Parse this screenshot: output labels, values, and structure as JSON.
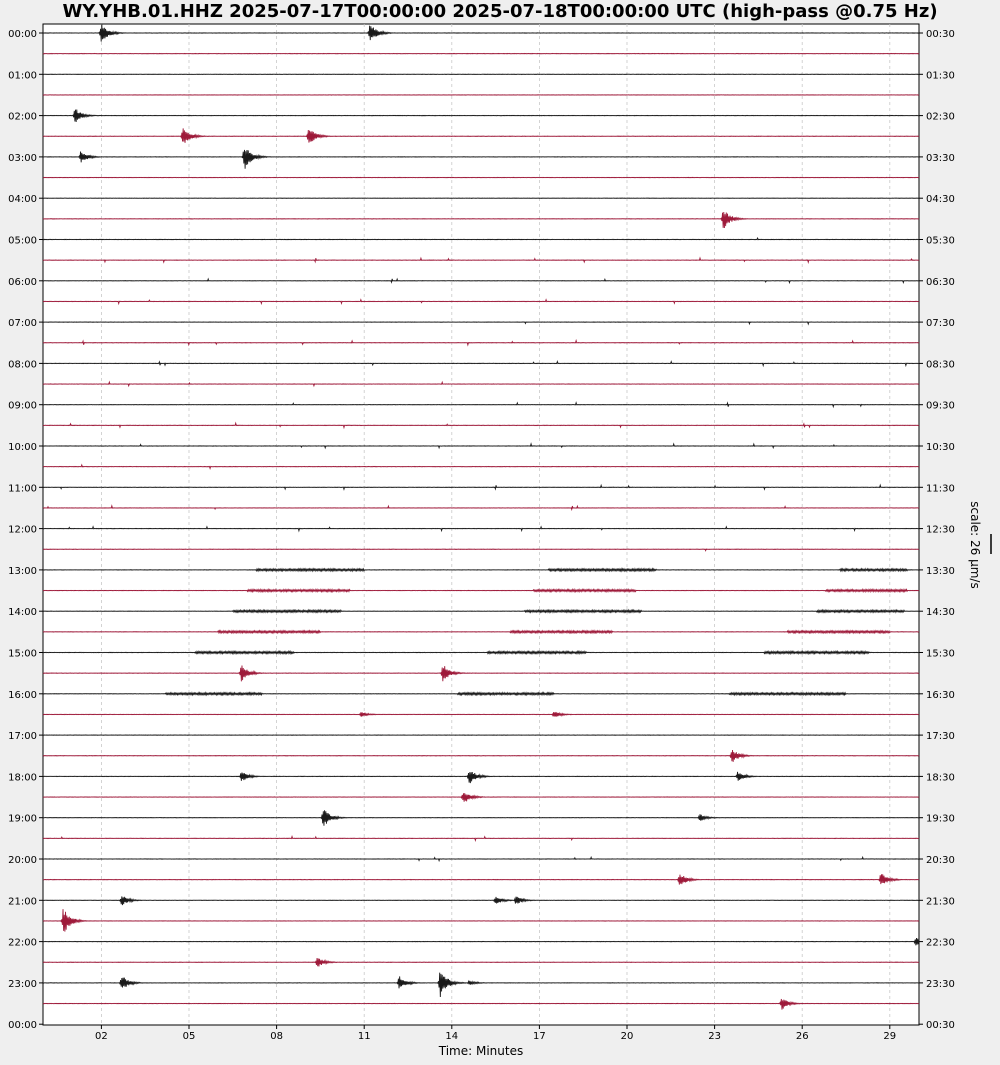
{
  "chart_data": {
    "type": "line",
    "title": "WY.YHB.01.HHZ 2025-07-17T00:00:00 2025-07-18T00:00:00 UTC (high-pass @0.75 Hz)",
    "xlabel": "Time: Minutes",
    "xlim": [
      0,
      30
    ],
    "x_ticks": [
      "02",
      "05",
      "08",
      "11",
      "14",
      "17",
      "20",
      "23",
      "26",
      "29"
    ],
    "x_tick_values": [
      2,
      5,
      8,
      11,
      14,
      17,
      20,
      23,
      26,
      29
    ],
    "left_labels": [
      "00:00",
      "01:00",
      "02:00",
      "03:00",
      "04:00",
      "05:00",
      "06:00",
      "07:00",
      "08:00",
      "09:00",
      "10:00",
      "11:00",
      "12:00",
      "13:00",
      "14:00",
      "15:00",
      "16:00",
      "17:00",
      "18:00",
      "19:00",
      "20:00",
      "21:00",
      "22:00",
      "23:00",
      "00:00"
    ],
    "right_labels": [
      "00:30",
      "01:30",
      "02:30",
      "03:30",
      "04:30",
      "05:30",
      "06:30",
      "07:30",
      "08:30",
      "09:30",
      "10:30",
      "11:30",
      "12:30",
      "13:30",
      "14:30",
      "15:30",
      "16:30",
      "17:30",
      "18:30",
      "19:30",
      "20:30",
      "21:30",
      "22:30",
      "23:30",
      "00:30"
    ],
    "scale_label": "scale: 26 μm/s",
    "grid": true,
    "colors": {
      "even_trace": "#1a1a1a",
      "odd_trace": "#9e1a3a",
      "grid": "#c8c8c8",
      "background": "#ffffff",
      "page": "#efefef"
    },
    "n_traces": 48,
    "events": [
      {
        "trace": 0,
        "minute": 2.0,
        "amp": 0.55
      },
      {
        "trace": 0,
        "minute": 11.2,
        "amp": 0.55
      },
      {
        "trace": 4,
        "minute": 1.1,
        "amp": 0.45
      },
      {
        "trace": 5,
        "minute": 4.8,
        "amp": 0.55
      },
      {
        "trace": 5,
        "minute": 9.1,
        "amp": 0.5
      },
      {
        "trace": 6,
        "minute": 1.3,
        "amp": 0.35
      },
      {
        "trace": 6,
        "minute": 6.9,
        "amp": 0.75
      },
      {
        "trace": 9,
        "minute": 23.3,
        "amp": 0.6
      },
      {
        "trace": 31,
        "minute": 6.8,
        "amp": 0.5
      },
      {
        "trace": 31,
        "minute": 13.7,
        "amp": 0.5
      },
      {
        "trace": 33,
        "minute": 10.9,
        "amp": 0.15
      },
      {
        "trace": 33,
        "minute": 17.5,
        "amp": 0.2
      },
      {
        "trace": 35,
        "minute": 23.6,
        "amp": 0.4
      },
      {
        "trace": 36,
        "minute": 6.8,
        "amp": 0.3
      },
      {
        "trace": 36,
        "minute": 14.6,
        "amp": 0.45
      },
      {
        "trace": 36,
        "minute": 23.8,
        "amp": 0.3
      },
      {
        "trace": 37,
        "minute": 14.4,
        "amp": 0.4
      },
      {
        "trace": 38,
        "minute": 9.6,
        "amp": 0.55
      },
      {
        "trace": 38,
        "minute": 22.5,
        "amp": 0.2
      },
      {
        "trace": 41,
        "minute": 21.8,
        "amp": 0.4
      },
      {
        "trace": 41,
        "minute": 28.7,
        "amp": 0.4
      },
      {
        "trace": 42,
        "minute": 2.7,
        "amp": 0.3
      },
      {
        "trace": 42,
        "minute": 15.5,
        "amp": 0.25
      },
      {
        "trace": 42,
        "minute": 16.2,
        "amp": 0.25
      },
      {
        "trace": 43,
        "minute": 0.7,
        "amp": 0.75
      },
      {
        "trace": 44,
        "minute": 29.9,
        "amp": 0.3
      },
      {
        "trace": 45,
        "minute": 9.4,
        "amp": 0.3
      },
      {
        "trace": 46,
        "minute": 2.7,
        "amp": 0.45
      },
      {
        "trace": 46,
        "minute": 12.2,
        "amp": 0.4
      },
      {
        "trace": 46,
        "minute": 13.6,
        "amp": 0.85
      },
      {
        "trace": 46,
        "minute": 14.6,
        "amp": 0.15
      },
      {
        "trace": 47,
        "minute": 25.3,
        "amp": 0.35
      }
    ],
    "noise_segments": [
      {
        "trace": 28,
        "start": 6.5,
        "end": 10.2
      },
      {
        "trace": 28,
        "start": 16.5,
        "end": 20.5
      },
      {
        "trace": 28,
        "start": 26.5,
        "end": 29.5
      },
      {
        "trace": 29,
        "start": 6.0,
        "end": 9.5
      },
      {
        "trace": 29,
        "start": 16.0,
        "end": 19.5
      },
      {
        "trace": 29,
        "start": 25.5,
        "end": 29.0
      },
      {
        "trace": 30,
        "start": 5.2,
        "end": 8.6
      },
      {
        "trace": 30,
        "start": 15.2,
        "end": 18.6
      },
      {
        "trace": 30,
        "start": 24.7,
        "end": 28.3
      },
      {
        "trace": 32,
        "start": 4.2,
        "end": 7.5
      },
      {
        "trace": 32,
        "start": 14.2,
        "end": 17.5
      },
      {
        "trace": 32,
        "start": 23.5,
        "end": 27.5
      },
      {
        "trace": 26,
        "start": 7.3,
        "end": 11.0
      },
      {
        "trace": 26,
        "start": 17.3,
        "end": 21.0
      },
      {
        "trace": 26,
        "start": 27.3,
        "end": 29.6
      },
      {
        "trace": 27,
        "start": 7.0,
        "end": 10.5
      },
      {
        "trace": 27,
        "start": 16.8,
        "end": 20.3
      },
      {
        "trace": 27,
        "start": 26.8,
        "end": 29.6
      }
    ],
    "blip_traces": [
      10,
      11,
      12,
      13,
      14,
      15,
      16,
      17,
      18,
      19,
      20,
      21,
      22,
      23,
      24,
      25,
      39,
      40
    ]
  }
}
